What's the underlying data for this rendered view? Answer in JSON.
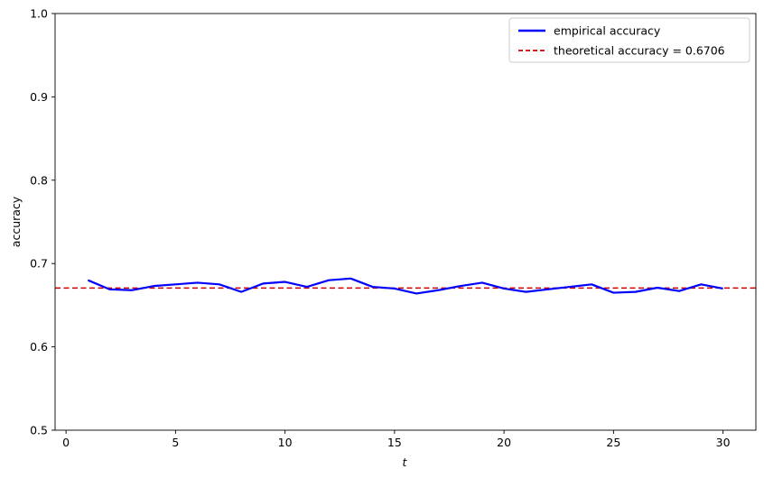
{
  "chart_data": {
    "type": "line",
    "title": "",
    "xlabel": "t",
    "ylabel": "accuracy",
    "xlim": [
      -0.5,
      31.5
    ],
    "ylim": [
      0.5,
      1.0
    ],
    "x_ticks": [
      0,
      5,
      10,
      15,
      20,
      25,
      30
    ],
    "y_ticks": [
      0.5,
      0.6,
      0.7,
      0.8,
      0.9,
      1.0
    ],
    "x_tick_labels": [
      "0",
      "5",
      "10",
      "15",
      "20",
      "25",
      "30"
    ],
    "y_tick_labels": [
      "0.5",
      "0.6",
      "0.7",
      "0.8",
      "0.9",
      "1.0"
    ],
    "grid": false,
    "legend_position": "top-right",
    "series": [
      {
        "name": "empirical accuracy",
        "color": "#0000ff",
        "style": "solid",
        "x": [
          1,
          2,
          3,
          4,
          5,
          6,
          7,
          8,
          9,
          10,
          11,
          12,
          13,
          14,
          15,
          16,
          17,
          18,
          19,
          20,
          21,
          22,
          23,
          24,
          25,
          26,
          27,
          28,
          29,
          30
        ],
        "values": [
          0.68,
          0.669,
          0.668,
          0.673,
          0.675,
          0.677,
          0.675,
          0.666,
          0.676,
          0.678,
          0.672,
          0.68,
          0.682,
          0.672,
          0.67,
          0.664,
          0.668,
          0.673,
          0.677,
          0.67,
          0.666,
          0.669,
          0.672,
          0.675,
          0.665,
          0.666,
          0.671,
          0.667,
          0.675,
          0.67
        ]
      }
    ],
    "hlines": [
      {
        "name": "theoretical accuracy = 0.6706",
        "value": 0.6706,
        "color": "#cc0000",
        "style": "dashed"
      }
    ]
  }
}
